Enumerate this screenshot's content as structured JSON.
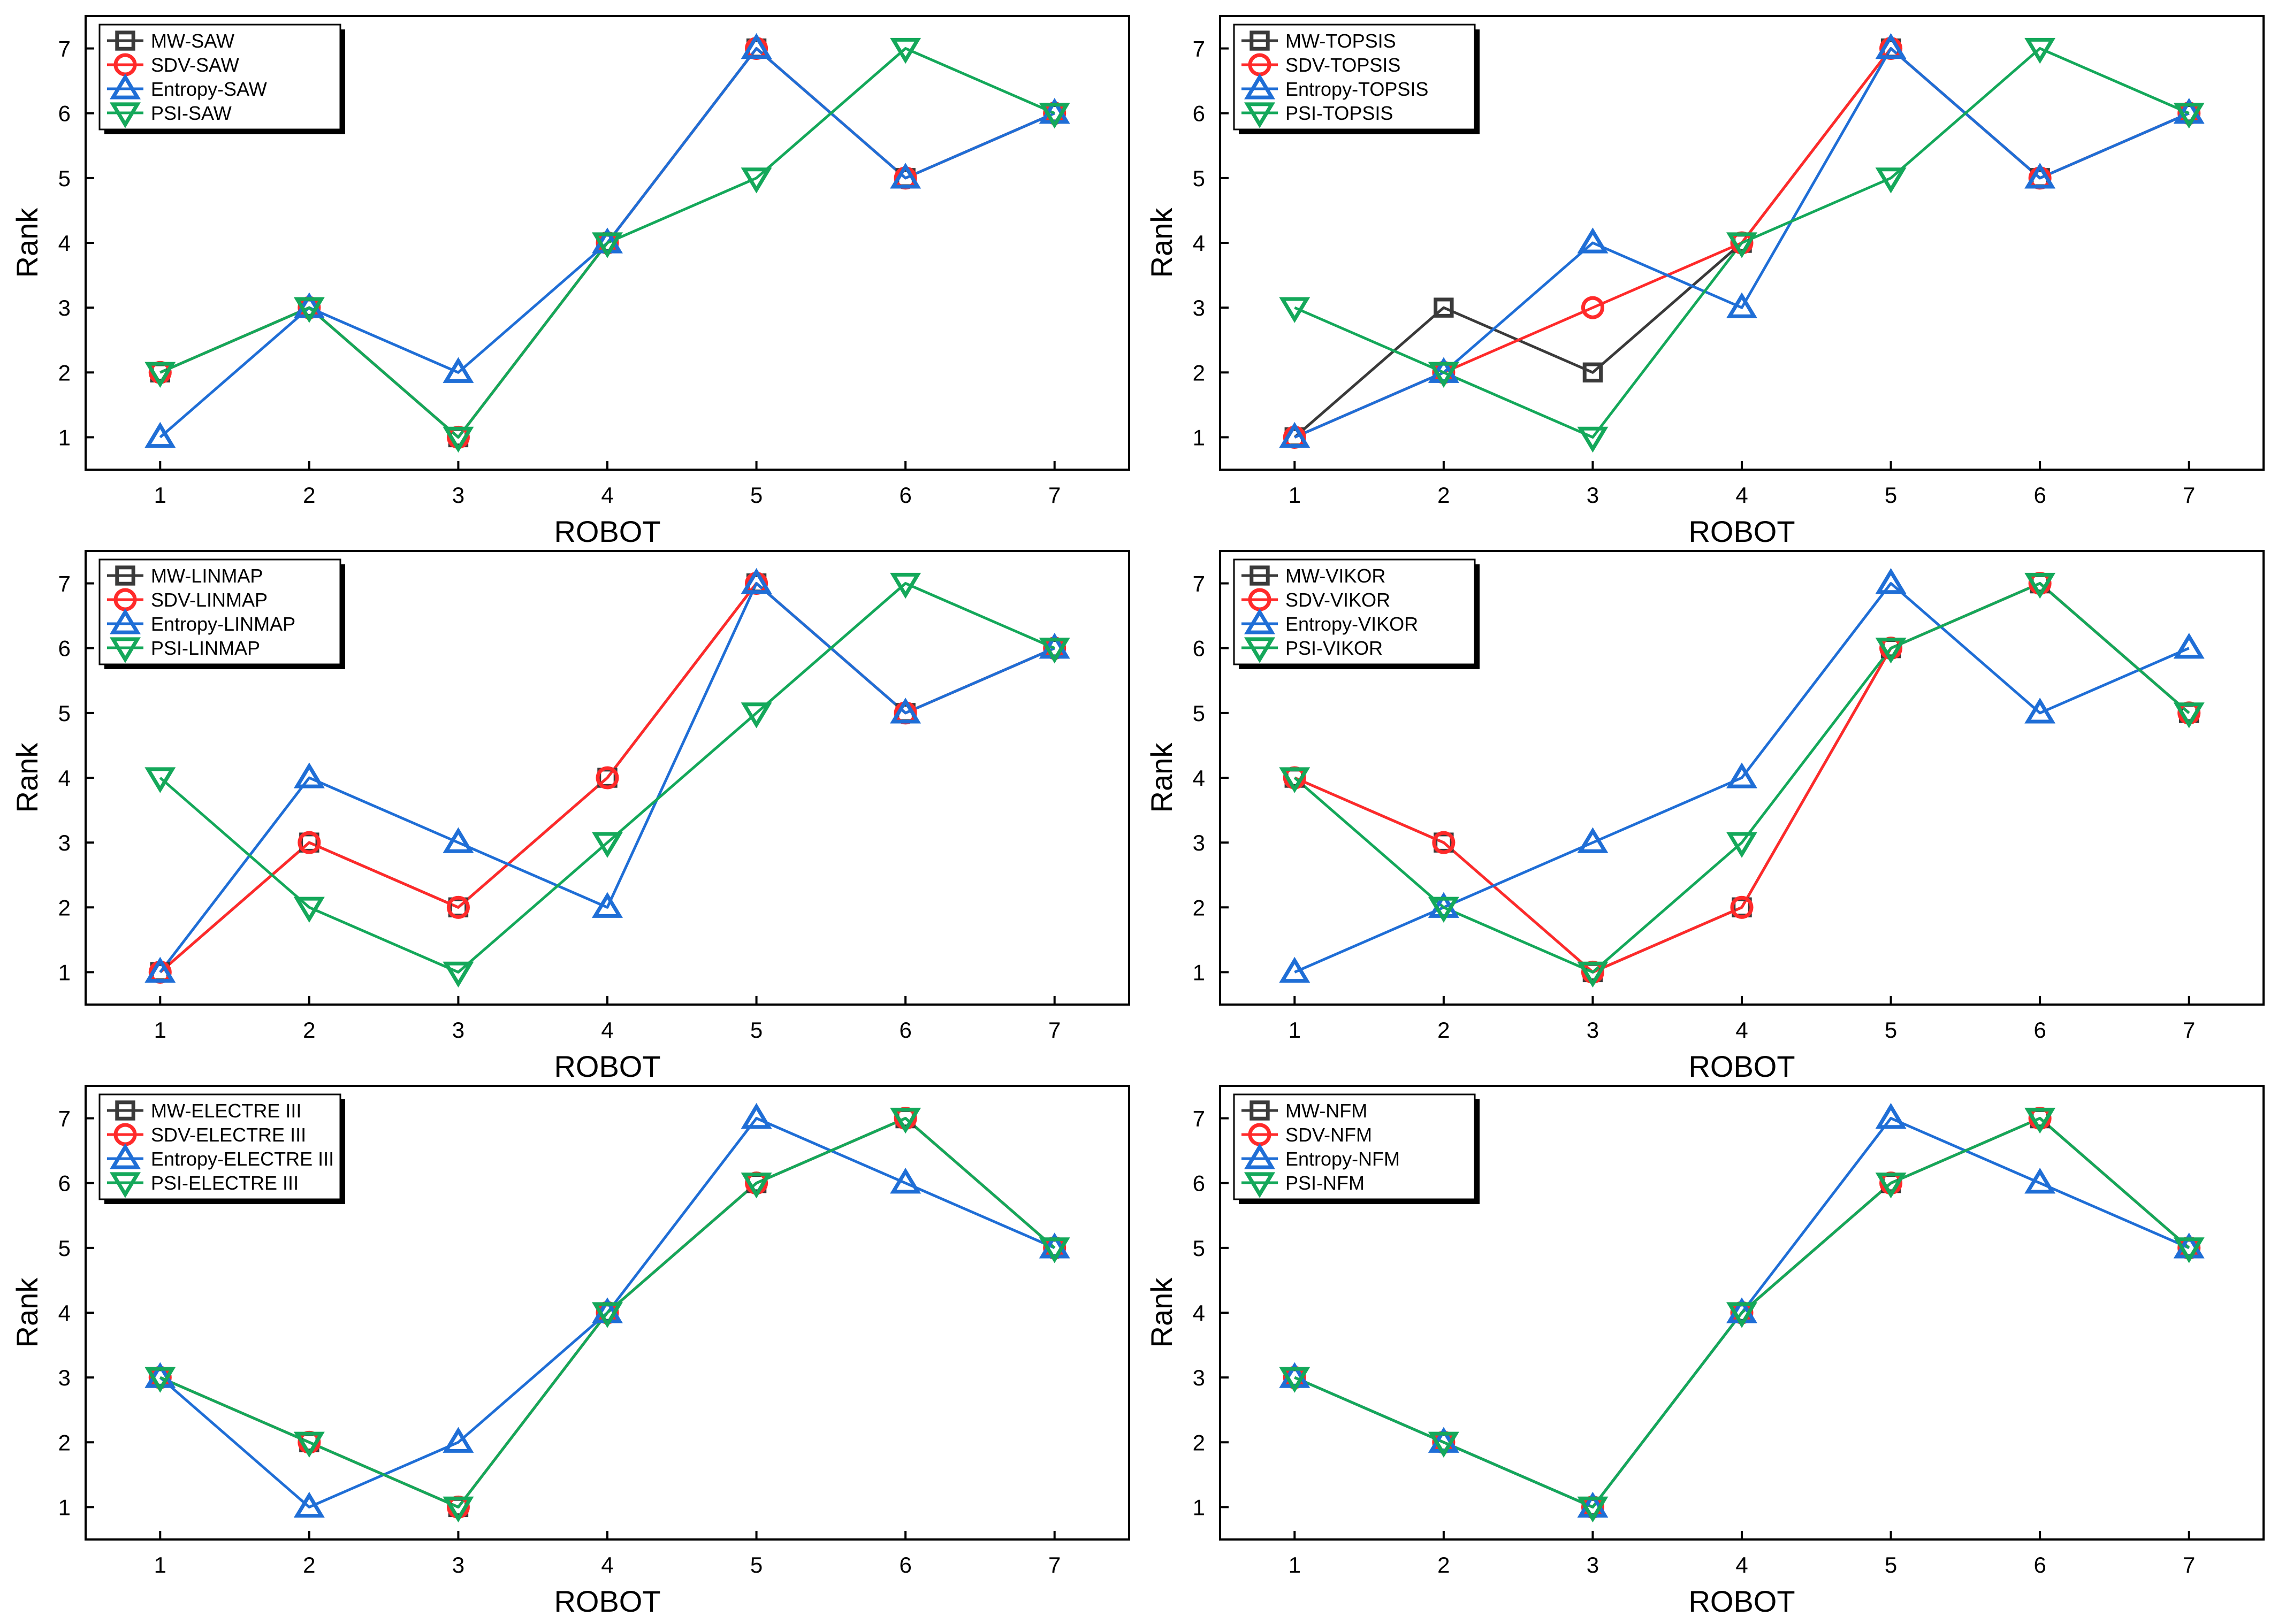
{
  "colors": {
    "MW": "#3a3a3a",
    "SDV": "#ff2a2a",
    "Entropy": "#1f6ed6",
    "PSI": "#14a85a",
    "axis": "#000000"
  },
  "chart_data": [
    {
      "type": "line",
      "xlabel": "ROBOT",
      "ylabel": "Rank",
      "x": [
        1,
        2,
        3,
        4,
        5,
        6,
        7
      ],
      "ylim": [
        0.5,
        7.5
      ],
      "yticks": [
        1,
        2,
        3,
        4,
        5,
        6,
        7
      ],
      "legend_position": "top-left",
      "series": [
        {
          "name": "MW-SAW",
          "key": "MW",
          "marker": "square",
          "values": [
            2,
            3,
            1,
            4,
            7,
            5,
            6
          ]
        },
        {
          "name": "SDV-SAW",
          "key": "SDV",
          "marker": "circle",
          "values": [
            2,
            3,
            1,
            4,
            7,
            5,
            6
          ]
        },
        {
          "name": "Entropy-SAW",
          "key": "Entropy",
          "marker": "triangle-up",
          "values": [
            1,
            3,
            2,
            4,
            7,
            5,
            6
          ]
        },
        {
          "name": "PSI-SAW",
          "key": "PSI",
          "marker": "triangle-down",
          "values": [
            2,
            3,
            1,
            4,
            5,
            7,
            6
          ]
        }
      ]
    },
    {
      "type": "line",
      "xlabel": "ROBOT",
      "ylabel": "Rank",
      "x": [
        1,
        2,
        3,
        4,
        5,
        6,
        7
      ],
      "ylim": [
        0.5,
        7.5
      ],
      "yticks": [
        1,
        2,
        3,
        4,
        5,
        6,
        7
      ],
      "legend_position": "top-left",
      "series": [
        {
          "name": "MW-TOPSIS",
          "key": "MW",
          "marker": "square",
          "values": [
            1,
            3,
            2,
            4,
            7,
            5,
            6
          ]
        },
        {
          "name": "SDV-TOPSIS",
          "key": "SDV",
          "marker": "circle",
          "values": [
            1,
            2,
            3,
            4,
            7,
            5,
            6
          ]
        },
        {
          "name": "Entropy-TOPSIS",
          "key": "Entropy",
          "marker": "triangle-up",
          "values": [
            1,
            2,
            4,
            3,
            7,
            5,
            6
          ]
        },
        {
          "name": "PSI-TOPSIS",
          "key": "PSI",
          "marker": "triangle-down",
          "values": [
            3,
            2,
            1,
            4,
            5,
            7,
            6
          ]
        }
      ]
    },
    {
      "type": "line",
      "xlabel": "ROBOT",
      "ylabel": "Rank",
      "x": [
        1,
        2,
        3,
        4,
        5,
        6,
        7
      ],
      "ylim": [
        0.5,
        7.5
      ],
      "yticks": [
        1,
        2,
        3,
        4,
        5,
        6,
        7
      ],
      "legend_position": "top-left",
      "series": [
        {
          "name": "MW-LINMAP",
          "key": "MW",
          "marker": "square",
          "values": [
            1,
            3,
            2,
            4,
            7,
            5,
            6
          ]
        },
        {
          "name": "SDV-LINMAP",
          "key": "SDV",
          "marker": "circle",
          "values": [
            1,
            3,
            2,
            4,
            7,
            5,
            6
          ]
        },
        {
          "name": "Entropy-LINMAP",
          "key": "Entropy",
          "marker": "triangle-up",
          "values": [
            1,
            4,
            3,
            2,
            7,
            5,
            6
          ]
        },
        {
          "name": "PSI-LINMAP",
          "key": "PSI",
          "marker": "triangle-down",
          "values": [
            4,
            2,
            1,
            3,
            5,
            7,
            6
          ]
        }
      ]
    },
    {
      "type": "line",
      "xlabel": "ROBOT",
      "ylabel": "Rank",
      "x": [
        1,
        2,
        3,
        4,
        5,
        6,
        7
      ],
      "ylim": [
        0.5,
        7.5
      ],
      "yticks": [
        1,
        2,
        3,
        4,
        5,
        6,
        7
      ],
      "legend_position": "top-left",
      "series": [
        {
          "name": "MW-VIKOR",
          "key": "MW",
          "marker": "square",
          "values": [
            4,
            3,
            1,
            2,
            6,
            7,
            5
          ]
        },
        {
          "name": "SDV-VIKOR",
          "key": "SDV",
          "marker": "circle",
          "values": [
            4,
            3,
            1,
            2,
            6,
            7,
            5
          ]
        },
        {
          "name": "Entropy-VIKOR",
          "key": "Entropy",
          "marker": "triangle-up",
          "values": [
            1,
            2,
            3,
            4,
            7,
            5,
            6
          ]
        },
        {
          "name": "PSI-VIKOR",
          "key": "PSI",
          "marker": "triangle-down",
          "values": [
            4,
            2,
            1,
            3,
            6,
            7,
            5
          ]
        }
      ]
    },
    {
      "type": "line",
      "xlabel": "ROBOT",
      "ylabel": "Rank",
      "x": [
        1,
        2,
        3,
        4,
        5,
        6,
        7
      ],
      "ylim": [
        0.5,
        7.5
      ],
      "yticks": [
        1,
        2,
        3,
        4,
        5,
        6,
        7
      ],
      "legend_position": "top-left",
      "series": [
        {
          "name": "MW-ELECTRE III",
          "key": "MW",
          "marker": "square",
          "values": [
            3,
            2,
            1,
            4,
            6,
            7,
            5
          ]
        },
        {
          "name": "SDV-ELECTRE III",
          "key": "SDV",
          "marker": "circle",
          "values": [
            3,
            2,
            1,
            4,
            6,
            7,
            5
          ]
        },
        {
          "name": "Entropy-ELECTRE III",
          "key": "Entropy",
          "marker": "triangle-up",
          "values": [
            3,
            1,
            2,
            4,
            7,
            6,
            5
          ]
        },
        {
          "name": "PSI-ELECTRE III",
          "key": "PSI",
          "marker": "triangle-down",
          "values": [
            3,
            2,
            1,
            4,
            6,
            7,
            5
          ]
        }
      ]
    },
    {
      "type": "line",
      "xlabel": "ROBOT",
      "ylabel": "Rank",
      "x": [
        1,
        2,
        3,
        4,
        5,
        6,
        7
      ],
      "ylim": [
        0.5,
        7.5
      ],
      "yticks": [
        1,
        2,
        3,
        4,
        5,
        6,
        7
      ],
      "legend_position": "top-left",
      "series": [
        {
          "name": "MW-NFM",
          "key": "MW",
          "marker": "square",
          "values": [
            3,
            2,
            1,
            4,
            6,
            7,
            5
          ]
        },
        {
          "name": "SDV-NFM",
          "key": "SDV",
          "marker": "circle",
          "values": [
            3,
            2,
            1,
            4,
            6,
            7,
            5
          ]
        },
        {
          "name": "Entropy-NFM",
          "key": "Entropy",
          "marker": "triangle-up",
          "values": [
            3,
            2,
            1,
            4,
            7,
            6,
            5
          ]
        },
        {
          "name": "PSI-NFM",
          "key": "PSI",
          "marker": "triangle-down",
          "values": [
            3,
            2,
            1,
            4,
            6,
            7,
            5
          ]
        }
      ]
    }
  ]
}
